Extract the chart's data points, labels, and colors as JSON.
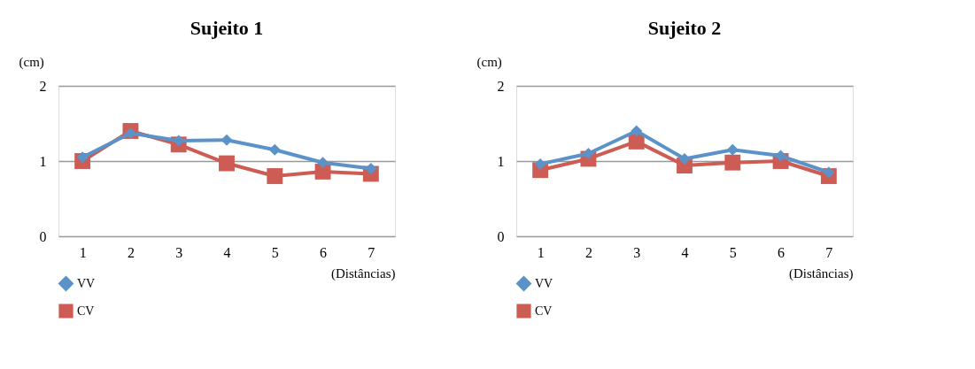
{
  "chart_data": [
    {
      "type": "line",
      "title": "Sujeito 1",
      "ylabel": "(cm)",
      "xlabel": "(Distâncias)",
      "categories": [
        "1",
        "2",
        "3",
        "4",
        "5",
        "6",
        "7"
      ],
      "ylim": [
        0,
        2
      ],
      "yticks": [
        0,
        1,
        2
      ],
      "grid": "y",
      "legend": "bottom left",
      "series": [
        {
          "name": "VV",
          "color": "#5b93c9",
          "marker": "diamond",
          "values": [
            1.05,
            1.37,
            1.27,
            1.28,
            1.15,
            0.98,
            0.9
          ]
        },
        {
          "name": "CV",
          "color": "#cd5c55",
          "marker": "square",
          "values": [
            1.0,
            1.4,
            1.22,
            0.97,
            0.8,
            0.86,
            0.83
          ]
        }
      ]
    },
    {
      "type": "line",
      "title": "Sujeito 2",
      "ylabel": "(cm)",
      "xlabel": "(Distâncias)",
      "categories": [
        "1",
        "2",
        "3",
        "4",
        "5",
        "6",
        "7"
      ],
      "ylim": [
        0,
        2
      ],
      "yticks": [
        0,
        1,
        2
      ],
      "grid": "y",
      "legend": "bottom left",
      "series": [
        {
          "name": "VV",
          "color": "#5b93c9",
          "marker": "diamond",
          "values": [
            0.96,
            1.1,
            1.4,
            1.03,
            1.15,
            1.07,
            0.85
          ]
        },
        {
          "name": "CV",
          "color": "#cd5c55",
          "marker": "square",
          "values": [
            0.88,
            1.03,
            1.26,
            0.94,
            0.98,
            1.0,
            0.8
          ]
        }
      ]
    }
  ]
}
